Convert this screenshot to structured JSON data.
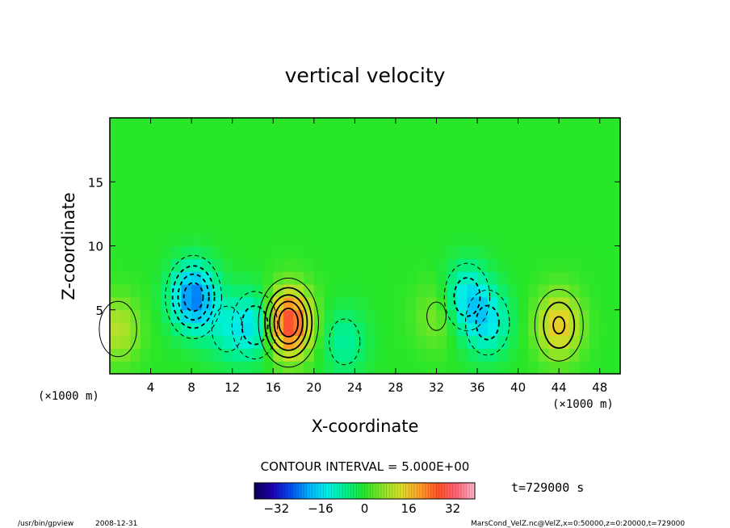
{
  "chart_data": {
    "type": "heatmap",
    "title": "vertical velocity",
    "xlabel": "X-coordinate",
    "ylabel": "Z-coordinate",
    "x_unit": "(×1000 m)",
    "x_unit_right": "(×1000 m)",
    "xlim": [
      0,
      50
    ],
    "ylim": [
      0,
      20
    ],
    "xticks": [
      4,
      8,
      12,
      16,
      20,
      24,
      28,
      32,
      36,
      40,
      44,
      48
    ],
    "yticks": [
      5,
      10,
      15
    ],
    "contour_interval_text": "CONTOUR INTERVAL = 5.000E+00",
    "contour_interval": 5,
    "time_label": "t=729000 s",
    "colorbar": {
      "range": [
        -40,
        40
      ],
      "ticks": [
        -32,
        -16,
        0,
        16,
        32
      ],
      "colors": [
        "#0a0050",
        "#1e00b4",
        "#0050f0",
        "#00b4ff",
        "#00f0e6",
        "#00f08c",
        "#28e628",
        "#8ce628",
        "#dcdc28",
        "#ffa028",
        "#ff5028",
        "#ff6478",
        "#ffb4c8"
      ]
    },
    "background_value": 0,
    "features": [
      {
        "name": "updraft-1",
        "x": 17.5,
        "z": 4.0,
        "peak": 30
      },
      {
        "name": "updraft-2",
        "x": 44.0,
        "z": 3.8,
        "peak": 16
      },
      {
        "name": "updraft-3",
        "x": 0.8,
        "z": 3.5,
        "peak": 10
      },
      {
        "name": "updraft-4",
        "x": 32.0,
        "z": 4.5,
        "peak": 6
      },
      {
        "name": "downdraft-1",
        "x": 8.2,
        "z": 6.0,
        "peak": -24
      },
      {
        "name": "downdraft-2",
        "x": 14.2,
        "z": 3.8,
        "peak": -14
      },
      {
        "name": "downdraft-3",
        "x": 11.5,
        "z": 3.5,
        "peak": -8
      },
      {
        "name": "downdraft-4",
        "x": 23.0,
        "z": 2.5,
        "peak": -8
      },
      {
        "name": "downdraft-5",
        "x": 35.0,
        "z": 6.0,
        "peak": -14
      },
      {
        "name": "downdraft-6",
        "x": 37.0,
        "z": 4.0,
        "peak": -13
      }
    ]
  },
  "footer": {
    "program": "/usr/bin/gpview",
    "date": "2008-12-31",
    "source": "MarsCond_VelZ.nc@VelZ,x=0:50000,z=0:20000,t=729000"
  }
}
